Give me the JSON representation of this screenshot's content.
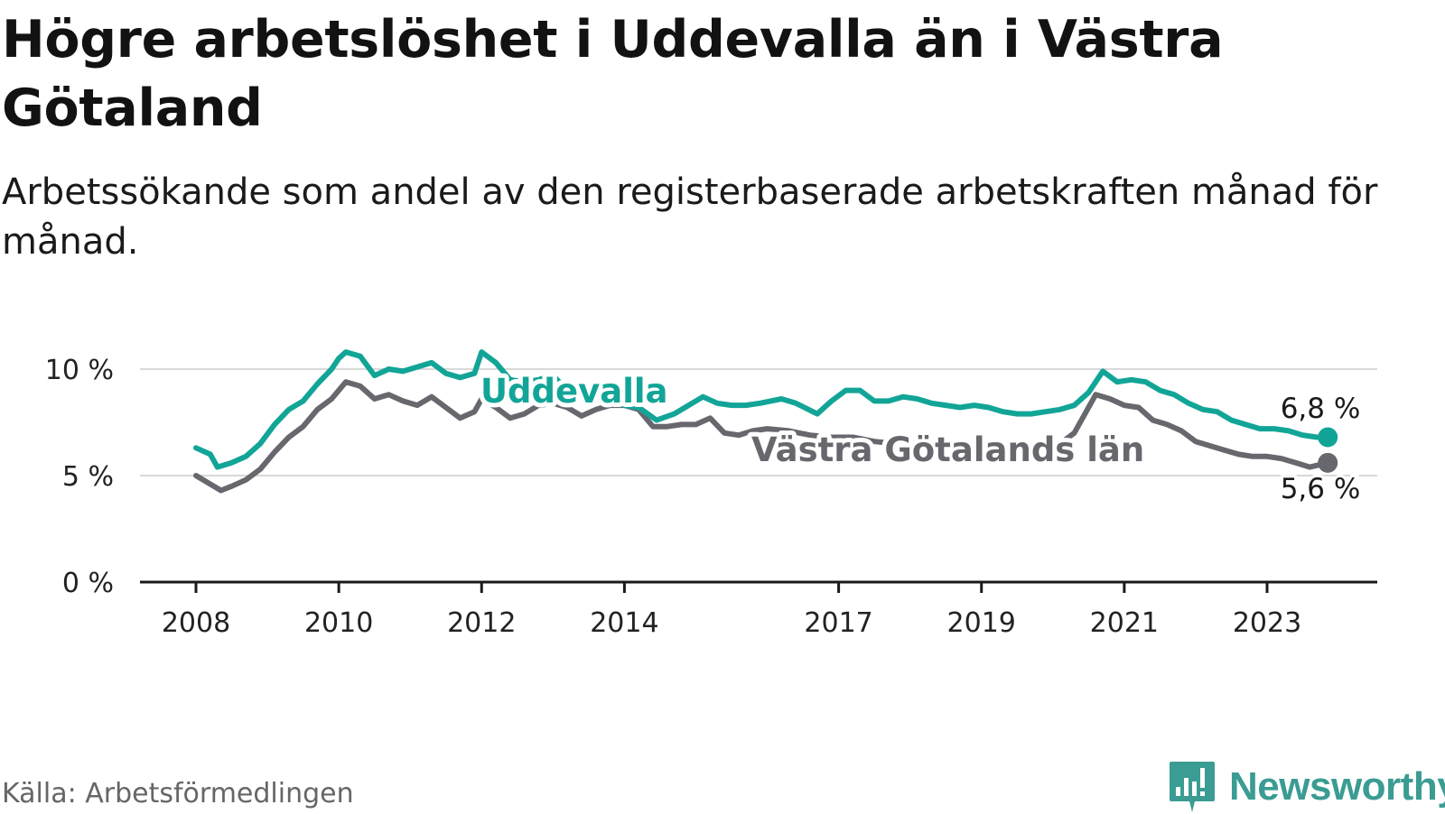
{
  "title": "Högre arbetslöshet i Uddevalla än i Västra Götaland",
  "subtitle": "Arbetssökande som andel av den registerbaserade arbetskraften månad för månad.",
  "source": "Källa: Arbetsförmedlingen",
  "brand": "Newsworthy",
  "colors": {
    "uddevalla": "#12a597",
    "vg": "#67676e",
    "grid": "#d9d9d9",
    "axis": "#1a1a1a",
    "brand": "#3a9c93"
  },
  "chart_data": {
    "type": "line",
    "title": "Högre arbetslöshet i Uddevalla än i Västra Götaland",
    "xlabel": "",
    "ylabel": "",
    "ylim": [
      0,
      10.5
    ],
    "yticks": [
      0,
      5,
      10
    ],
    "ytick_labels": [
      "0 %",
      "5 %",
      "10 %"
    ],
    "xticks": [
      2008,
      2010,
      2012,
      2014,
      2017,
      2019,
      2021,
      2023
    ],
    "xtick_labels": [
      "2008",
      "2010",
      "2012",
      "2014",
      "2017",
      "2019",
      "2021",
      "2023"
    ],
    "xlim": [
      2007.25,
      2024.6
    ],
    "series": [
      {
        "name": "Uddevalla",
        "label": "Uddevalla",
        "end_label": "6,8 %",
        "points": [
          [
            2008.0,
            6.3
          ],
          [
            2008.2,
            6.0
          ],
          [
            2008.3,
            5.4
          ],
          [
            2008.5,
            5.6
          ],
          [
            2008.7,
            5.9
          ],
          [
            2008.9,
            6.5
          ],
          [
            2009.1,
            7.4
          ],
          [
            2009.3,
            8.1
          ],
          [
            2009.5,
            8.5
          ],
          [
            2009.7,
            9.3
          ],
          [
            2009.9,
            10.0
          ],
          [
            2010.0,
            10.5
          ],
          [
            2010.1,
            10.8
          ],
          [
            2010.3,
            10.6
          ],
          [
            2010.5,
            9.7
          ],
          [
            2010.7,
            10.0
          ],
          [
            2010.9,
            9.9
          ],
          [
            2011.1,
            10.1
          ],
          [
            2011.3,
            10.3
          ],
          [
            2011.5,
            9.8
          ],
          [
            2011.7,
            9.6
          ],
          [
            2011.9,
            9.8
          ],
          [
            2012.0,
            10.8
          ],
          [
            2012.2,
            10.3
          ],
          [
            2012.4,
            9.5
          ],
          [
            2012.6,
            9.4
          ],
          [
            2012.8,
            9.5
          ],
          [
            2013.0,
            9.7
          ],
          [
            2013.2,
            9.0
          ],
          [
            2013.4,
            8.7
          ],
          [
            2013.6,
            8.6
          ],
          [
            2013.8,
            8.7
          ],
          [
            2014.0,
            8.3
          ],
          [
            2014.2,
            8.2
          ],
          [
            2014.45,
            7.6
          ],
          [
            2014.7,
            7.9
          ],
          [
            2014.9,
            8.3
          ],
          [
            2015.1,
            8.7
          ],
          [
            2015.3,
            8.4
          ],
          [
            2015.5,
            8.3
          ],
          [
            2015.7,
            8.3
          ],
          [
            2015.9,
            8.4
          ],
          [
            2016.2,
            8.6
          ],
          [
            2016.4,
            8.4
          ],
          [
            2016.7,
            7.9
          ],
          [
            2016.9,
            8.5
          ],
          [
            2017.1,
            9.0
          ],
          [
            2017.3,
            9.0
          ],
          [
            2017.5,
            8.5
          ],
          [
            2017.7,
            8.5
          ],
          [
            2017.9,
            8.7
          ],
          [
            2018.1,
            8.6
          ],
          [
            2018.3,
            8.4
          ],
          [
            2018.5,
            8.3
          ],
          [
            2018.7,
            8.2
          ],
          [
            2018.9,
            8.3
          ],
          [
            2019.1,
            8.2
          ],
          [
            2019.3,
            8.0
          ],
          [
            2019.5,
            7.9
          ],
          [
            2019.7,
            7.9
          ],
          [
            2019.9,
            8.0
          ],
          [
            2020.1,
            8.1
          ],
          [
            2020.3,
            8.3
          ],
          [
            2020.5,
            8.9
          ],
          [
            2020.7,
            9.9
          ],
          [
            2020.9,
            9.4
          ],
          [
            2021.1,
            9.5
          ],
          [
            2021.3,
            9.4
          ],
          [
            2021.5,
            9.0
          ],
          [
            2021.7,
            8.8
          ],
          [
            2021.9,
            8.4
          ],
          [
            2022.1,
            8.1
          ],
          [
            2022.3,
            8.0
          ],
          [
            2022.5,
            7.6
          ],
          [
            2022.7,
            7.4
          ],
          [
            2022.9,
            7.2
          ],
          [
            2023.1,
            7.2
          ],
          [
            2023.3,
            7.1
          ],
          [
            2023.5,
            6.9
          ],
          [
            2023.7,
            6.8
          ],
          [
            2023.85,
            6.8
          ]
        ]
      },
      {
        "name": "Västra Götalands län",
        "label": "Västra Götalands län",
        "end_label": "5,6 %",
        "points": [
          [
            2008.0,
            5.0
          ],
          [
            2008.2,
            4.6
          ],
          [
            2008.35,
            4.3
          ],
          [
            2008.5,
            4.5
          ],
          [
            2008.7,
            4.8
          ],
          [
            2008.9,
            5.3
          ],
          [
            2009.1,
            6.1
          ],
          [
            2009.3,
            6.8
          ],
          [
            2009.5,
            7.3
          ],
          [
            2009.7,
            8.1
          ],
          [
            2009.9,
            8.6
          ],
          [
            2010.0,
            9.0
          ],
          [
            2010.1,
            9.4
          ],
          [
            2010.3,
            9.2
          ],
          [
            2010.5,
            8.6
          ],
          [
            2010.7,
            8.8
          ],
          [
            2010.9,
            8.5
          ],
          [
            2011.1,
            8.3
          ],
          [
            2011.3,
            8.7
          ],
          [
            2011.5,
            8.2
          ],
          [
            2011.7,
            7.7
          ],
          [
            2011.9,
            8.0
          ],
          [
            2012.0,
            8.6
          ],
          [
            2012.2,
            8.2
          ],
          [
            2012.4,
            7.7
          ],
          [
            2012.6,
            7.9
          ],
          [
            2012.8,
            8.3
          ],
          [
            2013.0,
            8.4
          ],
          [
            2013.2,
            8.2
          ],
          [
            2013.4,
            7.8
          ],
          [
            2013.6,
            8.1
          ],
          [
            2013.8,
            8.3
          ],
          [
            2014.0,
            8.3
          ],
          [
            2014.2,
            8.1
          ],
          [
            2014.4,
            7.3
          ],
          [
            2014.6,
            7.3
          ],
          [
            2014.8,
            7.4
          ],
          [
            2015.0,
            7.4
          ],
          [
            2015.2,
            7.7
          ],
          [
            2015.4,
            7.0
          ],
          [
            2015.6,
            6.9
          ],
          [
            2015.8,
            7.1
          ],
          [
            2016.0,
            7.2
          ],
          [
            2016.3,
            7.1
          ],
          [
            2016.6,
            6.9
          ],
          [
            2016.9,
            6.8
          ],
          [
            2017.2,
            6.8
          ],
          [
            2017.5,
            6.6
          ],
          [
            2017.8,
            6.5
          ],
          [
            2018.1,
            6.5
          ],
          [
            2018.4,
            6.3
          ],
          [
            2018.7,
            6.3
          ],
          [
            2019.0,
            6.3
          ],
          [
            2019.3,
            6.3
          ],
          [
            2019.6,
            6.4
          ],
          [
            2019.9,
            6.4
          ],
          [
            2020.1,
            6.5
          ],
          [
            2020.3,
            7.0
          ],
          [
            2020.6,
            8.8
          ],
          [
            2020.8,
            8.6
          ],
          [
            2021.0,
            8.3
          ],
          [
            2021.2,
            8.2
          ],
          [
            2021.4,
            7.6
          ],
          [
            2021.6,
            7.4
          ],
          [
            2021.8,
            7.1
          ],
          [
            2022.0,
            6.6
          ],
          [
            2022.2,
            6.4
          ],
          [
            2022.4,
            6.2
          ],
          [
            2022.6,
            6.0
          ],
          [
            2022.8,
            5.9
          ],
          [
            2023.0,
            5.9
          ],
          [
            2023.2,
            5.8
          ],
          [
            2023.4,
            5.6
          ],
          [
            2023.6,
            5.4
          ],
          [
            2023.85,
            5.6
          ]
        ]
      }
    ]
  }
}
